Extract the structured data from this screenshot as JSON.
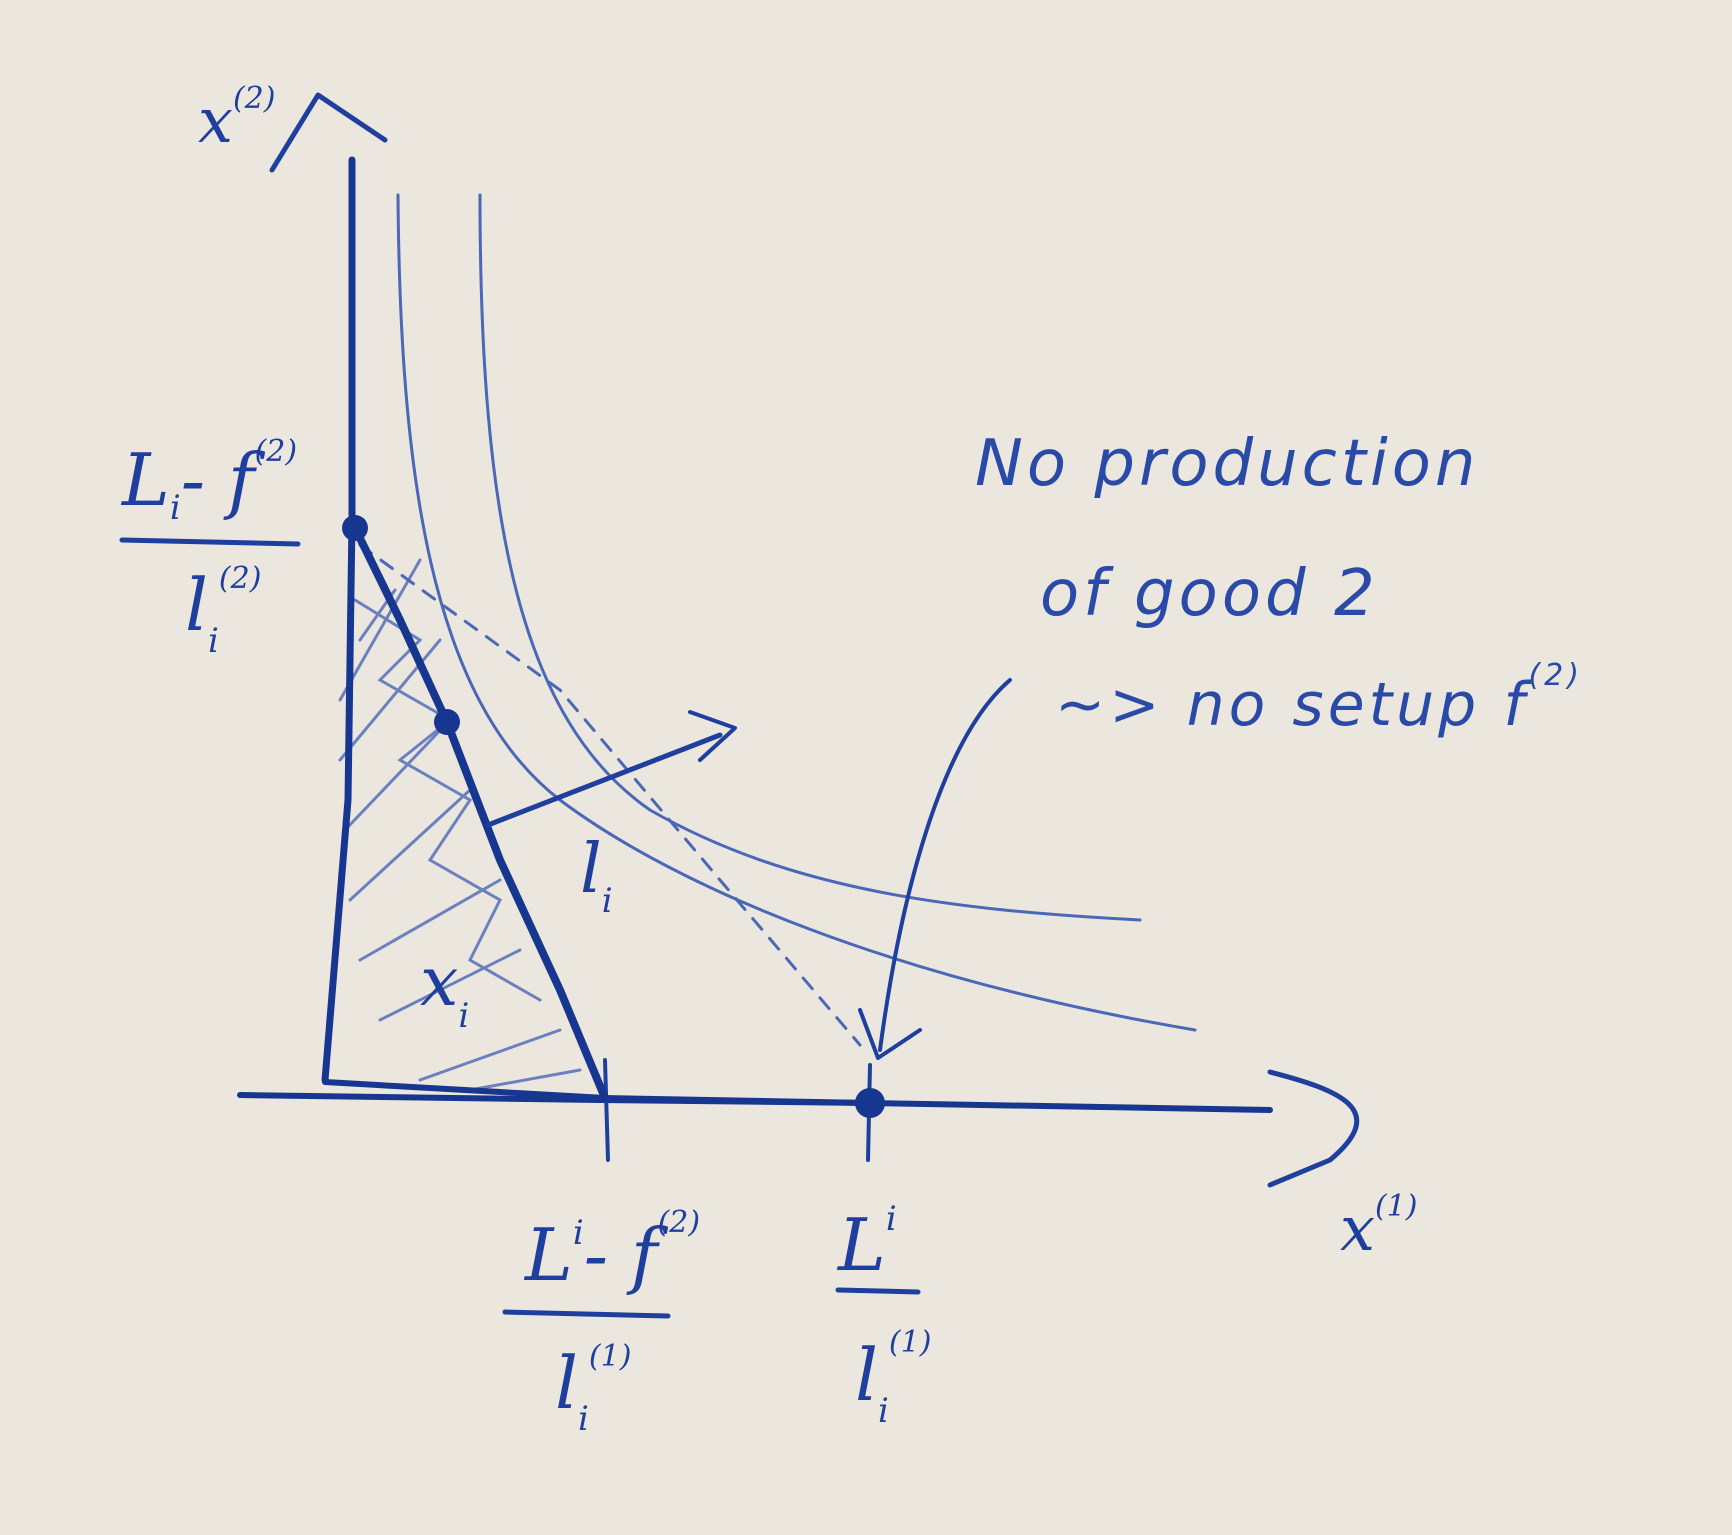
{
  "axes": {
    "y_label": "x",
    "y_label_sup": "(2)",
    "x_label": "x",
    "x_label_sup": "(1)"
  },
  "y_intercept": {
    "num": "L",
    "num_sub": "i",
    "num_rest": "- f",
    "num_sup": "(2)",
    "den": "l",
    "den_sub": "i",
    "den_sup": "(2)"
  },
  "x_intercept_setup": {
    "num": "L",
    "num_sup": "i",
    "num_rest": "- f",
    "num_sup2": "(2)",
    "den": "l",
    "den_sub": "i",
    "den_sup": "(1)"
  },
  "x_intercept_max": {
    "num": "L",
    "num_sup": "i",
    "den": "l",
    "den_sub": "i",
    "den_sup": "(1)"
  },
  "region_labels": {
    "feasible_set": "x",
    "feasible_set_sub": "i",
    "normal_vector": "l",
    "normal_vector_sub": "i"
  },
  "annotation": {
    "line1": "No production",
    "line2": "of good 2",
    "line3": "~> no setup f",
    "line3_sup": "(2)"
  }
}
